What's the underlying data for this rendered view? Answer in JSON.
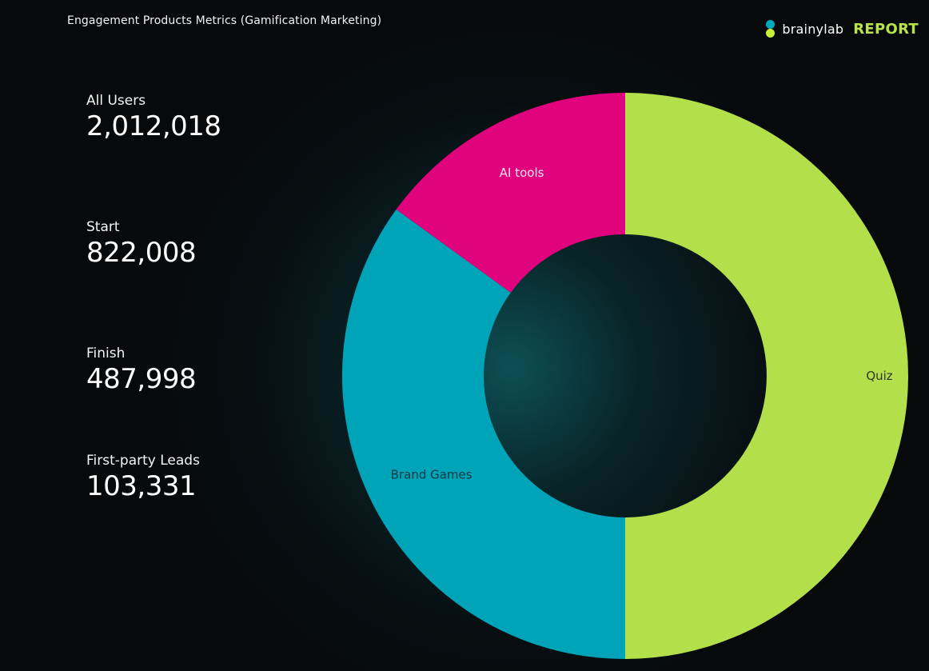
{
  "header": {
    "title": "Engagement Products Metrics (Gamification Marketing)",
    "brand_name": "brainylab",
    "brand_report": "REPORT"
  },
  "metrics": [
    {
      "label": "All Users",
      "value": "2,012,018"
    },
    {
      "label": "Start",
      "value": "822,008"
    },
    {
      "label": "Finish",
      "value": "487,998"
    },
    {
      "label": "First-party Leads",
      "value": "103,331"
    }
  ],
  "colors": {
    "quiz": "#b3df4b",
    "brand_games": "#00a4b8",
    "ai_tools": "#e0037d",
    "background": "#07090b",
    "accent": "#b9e34a"
  },
  "chart_data": {
    "type": "pie",
    "donut": true,
    "legend": "none",
    "categories": [
      "Quiz",
      "Brand Games",
      "AI tools"
    ],
    "values": [
      50,
      35,
      15
    ]
  }
}
